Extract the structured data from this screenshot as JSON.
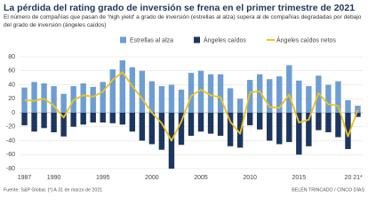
{
  "chart_data": {
    "type": "bar",
    "title": "La pérdida del rating grado de inversión se frena en el primer trimestre de 2021",
    "subtitle": "El número de compañías que pasan de 'high yield' a grado de inversión (estrellas al alza) supera al de compañías degradadas por debajo del grado de inversión (ángeles caídos)",
    "categories": [
      "1987",
      null,
      null,
      "1990",
      null,
      null,
      null,
      null,
      "1995",
      null,
      null,
      null,
      null,
      "2000",
      null,
      null,
      null,
      null,
      "2005",
      null,
      null,
      null,
      null,
      "2010",
      null,
      null,
      null,
      null,
      "2015",
      null,
      null,
      null,
      null,
      "20",
      "21*"
    ],
    "series": [
      {
        "name": "Estrellas al alza",
        "color": "#6d9ed3",
        "values": [
          36,
          44,
          42,
          38,
          27,
          38,
          42,
          37,
          44,
          62,
          75,
          65,
          60,
          45,
          38,
          40,
          33,
          57,
          60,
          55,
          55,
          35,
          20,
          47,
          55,
          48,
          52,
          68,
          46,
          38,
          53,
          40,
          45,
          18,
          10
        ]
      },
      {
        "name": "Ángeles caídos",
        "color": "#1c365f",
        "values": [
          -18,
          -27,
          -22,
          -28,
          -34,
          -20,
          -17,
          -14,
          -14,
          -15,
          -17,
          -27,
          -40,
          -45,
          -53,
          -80,
          -46,
          -33,
          -27,
          -30,
          -33,
          -48,
          -50,
          -18,
          -24,
          -40,
          -45,
          -42,
          -60,
          -48,
          -25,
          -28,
          -35,
          -52,
          -6
        ]
      },
      {
        "name": "Ángeles caídos netos",
        "color": "#efc21b",
        "type": "line",
        "values": [
          18,
          17,
          20,
          10,
          -7,
          18,
          25,
          23,
          30,
          47,
          58,
          38,
          20,
          0,
          -15,
          -40,
          -13,
          24,
          33,
          25,
          22,
          -13,
          -30,
          29,
          31,
          8,
          7,
          26,
          -14,
          -10,
          28,
          12,
          10,
          -34,
          4
        ]
      }
    ],
    "ylim": [
      -80,
      80
    ],
    "yticks": [
      -80,
      -60,
      -40,
      -20,
      0,
      20,
      40,
      60,
      80
    ],
    "grid": true,
    "source": "Fuente: S&P Global. (*) A 31 de marzo de 2021",
    "credit": "BELÉN TRINCADO / CINCO DÍAS"
  }
}
